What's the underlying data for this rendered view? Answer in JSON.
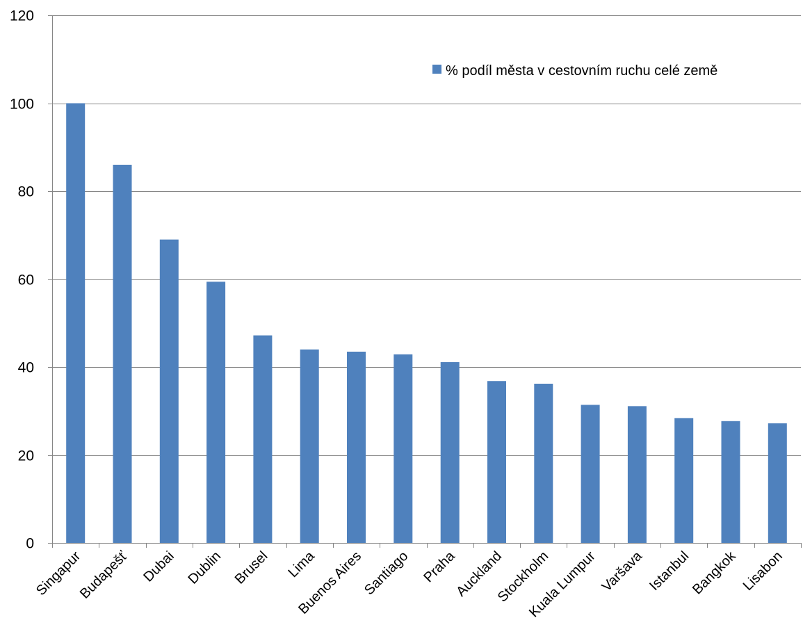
{
  "chart_data": {
    "type": "bar",
    "title": "",
    "xlabel": "",
    "ylabel": "",
    "ylim": [
      0,
      120
    ],
    "yticks": [
      "0",
      "20",
      "40",
      "60",
      "80",
      "100",
      "120"
    ],
    "grid": true,
    "legend_position": "top-right",
    "categories": [
      "Singapur",
      "Budapešť",
      "Dubai",
      "Dublin",
      "Brusel",
      "Lima",
      "Buenos Aires",
      "Santiago",
      "Praha",
      "Auckland",
      "Stockholm",
      "Kuala Lumpur",
      "Varšava",
      "Istanbul",
      "Bangkok",
      "Lisabon"
    ],
    "series": [
      {
        "name": "% podíl města v cestovním ruchu celé země",
        "color": "#4F81BD",
        "values": [
          100,
          86,
          69,
          59.4,
          47.2,
          44,
          43.5,
          42.9,
          41.1,
          36.8,
          36.2,
          31.4,
          31.1,
          28.4,
          27.7,
          27.2
        ]
      }
    ]
  }
}
